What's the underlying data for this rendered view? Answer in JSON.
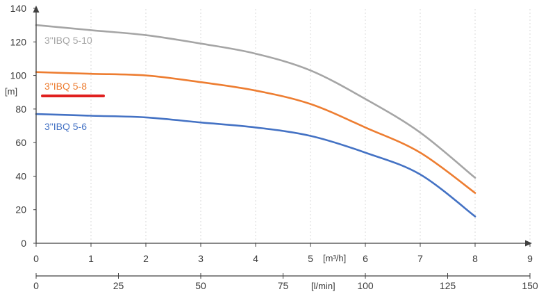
{
  "chart_data": {
    "type": "line",
    "title": "",
    "ylabel": "[m]",
    "xlabel_m3h": "[m³/h]",
    "xlabel_lmin": "[l/min]",
    "ylim": [
      0,
      140
    ],
    "y_ticks": [
      "0",
      "20",
      "40",
      "60",
      "80",
      "100",
      "120",
      "140"
    ],
    "x_m3h_lim": [
      0,
      9
    ],
    "x_m3h_ticks": [
      "0",
      "1",
      "2",
      "3",
      "4",
      "5",
      "6",
      "7",
      "8",
      "9"
    ],
    "x_lmin_lim": [
      0,
      150
    ],
    "x_lmin_ticks": [
      "0",
      "25",
      "50",
      "75",
      "100",
      "125",
      "150"
    ],
    "grid": "vertical",
    "highlight_color": "#e0201f",
    "series": [
      {
        "name": "3\"IBQ 5-10",
        "color": "#a5a5a5",
        "x": [
          0,
          1,
          2,
          3,
          4,
          5,
          6,
          7,
          8
        ],
        "y": [
          130,
          127,
          124,
          119,
          113,
          103,
          86,
          66,
          39
        ]
      },
      {
        "name": "3\"IBQ 5-8",
        "color": "#ed7d31",
        "x": [
          0,
          1,
          2,
          3,
          4,
          5,
          6,
          7,
          8
        ],
        "y": [
          102,
          101,
          100,
          96,
          91,
          83,
          69,
          54,
          30
        ]
      },
      {
        "name": "3\"IBQ 5-6",
        "color": "#4472c4",
        "x": [
          0,
          1,
          2,
          3,
          4,
          5,
          6,
          7,
          8
        ],
        "y": [
          77,
          76,
          75,
          72,
          69,
          64,
          54,
          41,
          16
        ]
      }
    ]
  }
}
